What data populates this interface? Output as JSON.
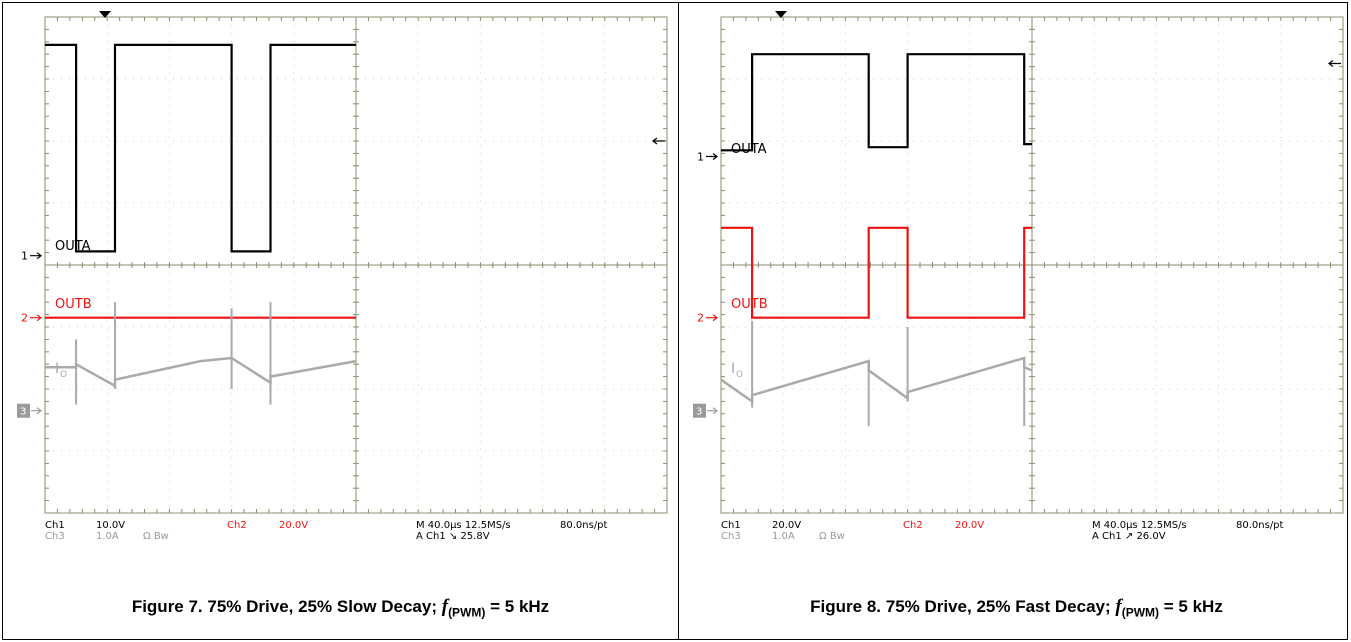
{
  "chart_data": [
    {
      "type": "line",
      "caption": {
        "prefix": "Figure 7. 75% Drive, 25% Slow Decay; ",
        "f": "f",
        "sub": "(PWM)",
        "suffix": " = 5 kHz"
      },
      "x": {
        "unit": "µs",
        "range": [
          0,
          400
        ],
        "per_div": 40.0,
        "divisions": 10
      },
      "y": {
        "unit": "div",
        "range": [
          -4,
          4
        ],
        "divisions": 8
      },
      "grid": true,
      "channel_labels": {
        "outa": "OUTA",
        "outb": "OUTB",
        "io": "I",
        "io_sub": "O"
      },
      "markers": {
        "ch1": "1",
        "ch2": "2",
        "ch3": "3",
        "ch1_level": 0.15,
        "ch2_level": -0.85,
        "ch3_level": -2.35
      },
      "trigger_arrow_level": 2.0,
      "readout": {
        "ch1": "Ch1",
        "ch1_scale": "10.0V",
        "ch2": "Ch2",
        "ch2_scale": "20.0V",
        "ch3": "Ch3",
        "ch3_scale": "1.0A",
        "ch3_flags": "Ω  Bw",
        "timebase": "M 40.0µs 12.5MS/s",
        "resolution": "80.0ns/pt",
        "trigger": "A  Ch1  ↘  25.8V"
      },
      "colors": {
        "ch1": "#000000",
        "ch2": "#ee1111",
        "ch3": "#aaaaaa"
      },
      "series": [
        {
          "name": "OUTA",
          "color": "#000000",
          "points": [
            [
              0,
              3.55
            ],
            [
              20,
              3.55
            ],
            [
              20,
              0.22
            ],
            [
              45,
              0.22
            ],
            [
              45,
              3.55
            ],
            [
              120,
              3.55
            ],
            [
              120,
              0.22
            ],
            [
              145,
              0.22
            ],
            [
              145,
              3.55
            ],
            [
              200,
              3.55
            ]
          ]
        },
        {
          "name": "OUTB",
          "color": "#ee1111",
          "points": [
            [
              0,
              -0.85
            ],
            [
              200,
              -0.85
            ]
          ]
        },
        {
          "name": "I",
          "color": "#aaaaaa",
          "points": [
            [
              0,
              -1.65
            ],
            [
              20,
              -1.65
            ],
            [
              20,
              -1.6
            ],
            [
              45,
              -1.95
            ],
            [
              45,
              -1.85
            ],
            [
              100,
              -1.55
            ],
            [
              120,
              -1.5
            ],
            [
              145,
              -1.9
            ],
            [
              145,
              -1.8
            ],
            [
              200,
              -1.55
            ]
          ]
        }
      ],
      "spikes": [
        [
          20,
          -1.2,
          -2.25
        ],
        [
          45,
          -0.6,
          -2.0
        ],
        [
          120,
          -0.7,
          -2.0
        ],
        [
          145,
          -0.6,
          -2.25
        ]
      ]
    },
    {
      "type": "line",
      "caption": {
        "prefix": "Figure 8. 75% Drive, 25% Fast Decay; ",
        "f": "f",
        "sub": "(PWM)",
        "suffix": " = 5 kHz"
      },
      "x": {
        "unit": "µs",
        "range": [
          0,
          400
        ],
        "per_div": 40.0,
        "divisions": 10
      },
      "y": {
        "unit": "div",
        "range": [
          -4,
          4
        ],
        "divisions": 8
      },
      "grid": true,
      "channel_labels": {
        "outa": "OUTA",
        "outb": "OUTB",
        "io": "I",
        "io_sub": "O"
      },
      "markers": {
        "ch1": "1",
        "ch2": "2",
        "ch3": "3",
        "ch1_level": 1.75,
        "ch2_level": -0.85,
        "ch3_level": -2.35
      },
      "trigger_arrow_level": 3.25,
      "readout": {
        "ch1": "Ch1",
        "ch1_scale": "20.0V",
        "ch2": "Ch2",
        "ch2_scale": "20.0V",
        "ch3": "Ch3",
        "ch3_scale": "1.0A",
        "ch3_flags": "Ω  Bw",
        "timebase": "M 40.0µs 12.5MS/s",
        "resolution": "80.0ns/pt",
        "trigger": "A  Ch1  ↗  26.0V"
      },
      "colors": {
        "ch1": "#000000",
        "ch2": "#ee1111",
        "ch3": "#aaaaaa"
      },
      "series": [
        {
          "name": "OUTA",
          "color": "#000000",
          "points": [
            [
              0,
              1.85
            ],
            [
              20,
              1.85
            ],
            [
              20,
              3.4
            ],
            [
              95,
              3.4
            ],
            [
              95,
              1.9
            ],
            [
              120,
              1.9
            ],
            [
              120,
              3.4
            ],
            [
              195,
              3.4
            ],
            [
              195,
              1.95
            ],
            [
              200,
              1.95
            ]
          ]
        },
        {
          "name": "OUTB",
          "color": "#ee1111",
          "points": [
            [
              0,
              0.6
            ],
            [
              20,
              0.6
            ],
            [
              20,
              -0.85
            ],
            [
              95,
              -0.85
            ],
            [
              95,
              0.6
            ],
            [
              120,
              0.6
            ],
            [
              120,
              -0.85
            ],
            [
              195,
              -0.85
            ],
            [
              195,
              0.6
            ],
            [
              200,
              0.6
            ]
          ]
        },
        {
          "name": "I",
          "color": "#aaaaaa",
          "points": [
            [
              0,
              -1.85
            ],
            [
              20,
              -2.2
            ],
            [
              20,
              -2.1
            ],
            [
              95,
              -1.55
            ],
            [
              95,
              -1.7
            ],
            [
              120,
              -2.15
            ],
            [
              120,
              -2.05
            ],
            [
              195,
              -1.5
            ],
            [
              195,
              -1.65
            ],
            [
              200,
              -1.7
            ]
          ]
        }
      ],
      "spikes": [
        [
          20,
          -0.9,
          -2.3
        ],
        [
          95,
          -2.6,
          -1.6
        ],
        [
          120,
          -1.0,
          -2.2
        ],
        [
          195,
          -2.6,
          -1.55
        ]
      ]
    }
  ]
}
